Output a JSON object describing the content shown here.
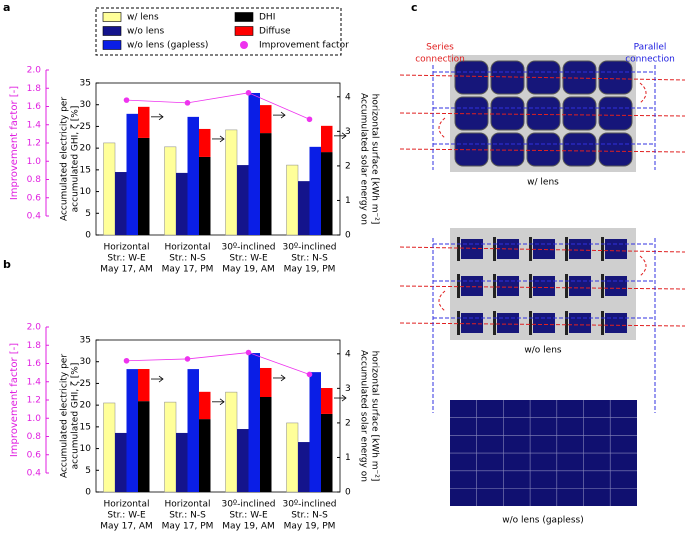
{
  "chart_data": [
    {
      "type": "bar",
      "panel": "a",
      "categories": [
        [
          "Horizontal",
          "Str.: W-E",
          "May 17, AM"
        ],
        [
          "Horizontal",
          "Str.: N-S",
          "May 17, PM"
        ],
        [
          "30º-inclined",
          "Str.: W-E",
          "May 19, AM"
        ],
        [
          "30º-inclined",
          "Str.: N-S",
          "May 19, PM"
        ]
      ],
      "ylabel": [
        "Accumulated electricity per",
        "accumulated GHI, ζ [%]"
      ],
      "y2label": [
        "Accumulated solar energy on",
        "horizontal surface [kWh m⁻²]"
      ],
      "y3label": "Improvement factor [-]",
      "ylim": [
        0,
        35
      ],
      "yticks": [
        0,
        5,
        10,
        15,
        20,
        25,
        30,
        35
      ],
      "y2lim": [
        0,
        4.4
      ],
      "y2ticks": [
        0,
        1,
        2,
        3,
        4
      ],
      "y3lim": [
        0.4,
        2.0
      ],
      "y3ticks": [
        0.4,
        0.6,
        0.8,
        {
          "value": 1.0,
          "label": "1.0"
        },
        1.2,
        1.4,
        1.6,
        1.8,
        {
          "value": 2.0,
          "label": "2.0"
        }
      ],
      "series": [
        {
          "name": "w/ lens",
          "color": "#ffff99",
          "values": [
            21.2,
            20.3,
            24.2,
            16.1
          ]
        },
        {
          "name": "w/o lens",
          "color": "#14148c",
          "values": [
            14.5,
            14.3,
            16.1,
            12.4
          ]
        },
        {
          "name": "w/o lens (gapless)",
          "color": "#0a1ee6",
          "values": [
            27.9,
            27.2,
            32.7,
            20.3
          ]
        },
        {
          "name": "DHI",
          "color": "#000000",
          "axis": "y2",
          "stack": true,
          "values": [
            2.81,
            2.26,
            2.95,
            2.4
          ]
        },
        {
          "name": "Diffuse",
          "color": "#ff0000",
          "axis": "y2",
          "stack": true,
          "values": [
            0.9,
            0.81,
            0.81,
            0.76
          ]
        },
        {
          "name": "Improvement factor",
          "color": "#ee33ee",
          "axis": "y3",
          "kind": "line",
          "values": [
            1.67,
            1.64,
            1.75,
            1.46
          ]
        }
      ]
    },
    {
      "type": "bar",
      "panel": "b",
      "categories": [
        [
          "Horizontal",
          "Str.: W-E",
          "May 17, AM"
        ],
        [
          "Horizontal",
          "Str.: N-S",
          "May 17, PM"
        ],
        [
          "30º-inclined",
          "Str.: W-E",
          "May 19, AM"
        ],
        [
          "30º-inclined",
          "Str.: N-S",
          "May 19, PM"
        ]
      ],
      "ylabel": [
        "Accumulated electricity per",
        "accumulated GHI, ζ [%]"
      ],
      "y2label": [
        "Accumulated solar energy on",
        "horizontal surface [kWh m⁻²]"
      ],
      "y3label": "Improvement factor [-]",
      "ylim": [
        0,
        35
      ],
      "yticks": [
        0,
        5,
        10,
        15,
        20,
        25,
        30,
        35
      ],
      "y2lim": [
        0,
        4.4
      ],
      "y2ticks": [
        0,
        1,
        2,
        3,
        4
      ],
      "y3lim": [
        0.4,
        2.0
      ],
      "y3ticks": [
        0.4,
        0.6,
        0.8,
        {
          "value": 1.0,
          "label": "1.0"
        },
        1.2,
        1.4,
        1.6,
        1.8,
        {
          "value": 2.0,
          "label": "2.0"
        }
      ],
      "series": [
        {
          "color": "#ffff99",
          "values": [
            20.5,
            20.7,
            23.0,
            15.9
          ]
        },
        {
          "color": "#14148c",
          "values": [
            13.6,
            13.6,
            14.5,
            11.5
          ]
        },
        {
          "color": "#0a1ee6",
          "values": [
            28.3,
            28.3,
            32.0,
            27.6
          ]
        },
        {
          "color": "#000000",
          "axis": "y2",
          "stack": true,
          "values": [
            2.63,
            2.11,
            2.75,
            2.26
          ]
        },
        {
          "color": "#ff0000",
          "axis": "y2",
          "stack": true,
          "values": [
            0.93,
            0.79,
            0.84,
            0.75
          ]
        },
        {
          "color": "#ee33ee",
          "axis": "y3",
          "kind": "line",
          "values": [
            1.63,
            1.65,
            1.72,
            1.48
          ]
        }
      ]
    }
  ],
  "panel_c": {
    "panel": "c",
    "series_label": [
      "Series",
      "connection"
    ],
    "parallel_label": [
      "Parallel",
      "connection"
    ],
    "captions": [
      "w/ lens",
      "w/o lens",
      "w/o lens (gapless)"
    ]
  }
}
